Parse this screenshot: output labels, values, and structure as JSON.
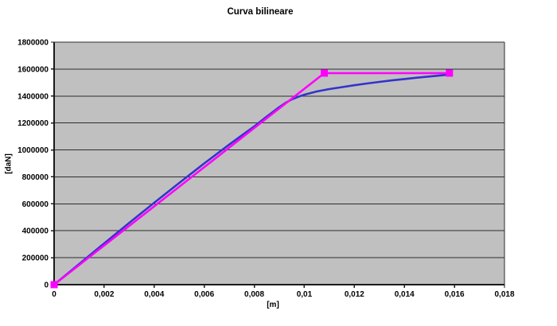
{
  "chart": {
    "title": "Curva bilineare",
    "x_axis_title": "[m]",
    "y_axis_title": "[daN]"
  },
  "chart_data": {
    "type": "line",
    "title": "Curva bilineare",
    "xlabel": "[m]",
    "ylabel": "[daN]",
    "xlim": [
      0,
      0.018
    ],
    "ylim": [
      0,
      1800000
    ],
    "grid": "horizontal",
    "legend": "none",
    "plot_bg": "#c0c0c0",
    "grid_color": "#2e2e2e",
    "axis_color": "#1a1a1a",
    "x_tick_values": [
      0,
      0.002,
      0.004,
      0.006,
      0.008,
      0.01,
      0.012,
      0.014,
      0.016,
      0.018
    ],
    "x_tick_labels": [
      "0",
      "0,002",
      "0,004",
      "0,006",
      "0,008",
      "0,01",
      "0,012",
      "0,014",
      "0,016",
      "0,018"
    ],
    "y_tick_values": [
      0,
      200000,
      400000,
      600000,
      800000,
      1000000,
      1200000,
      1400000,
      1600000,
      1800000
    ],
    "y_tick_labels": [
      "0",
      "200000",
      "400000",
      "600000",
      "800000",
      "1000000",
      "1200000",
      "1400000",
      "1600000",
      "1800000"
    ],
    "series": [
      {
        "id": "capacity-curve",
        "color": "#3333cc",
        "line_width": 2.6,
        "marker": "none",
        "points": [
          [
            0,
            0
          ],
          [
            0.001,
            153000
          ],
          [
            0.002,
            306000
          ],
          [
            0.003,
            458000
          ],
          [
            0.004,
            608000
          ],
          [
            0.005,
            755000
          ],
          [
            0.006,
            900000
          ],
          [
            0.007,
            1040000
          ],
          [
            0.0075,
            1108000
          ],
          [
            0.008,
            1175000
          ],
          [
            0.0085,
            1248000
          ],
          [
            0.009,
            1318000
          ],
          [
            0.00925,
            1350000
          ],
          [
            0.0095,
            1375000
          ],
          [
            0.00975,
            1394000
          ],
          [
            0.01,
            1410000
          ],
          [
            0.0105,
            1434000
          ],
          [
            0.011,
            1452000
          ],
          [
            0.0115,
            1466000
          ],
          [
            0.012,
            1480000
          ],
          [
            0.0125,
            1493000
          ],
          [
            0.013,
            1505000
          ],
          [
            0.0135,
            1516000
          ],
          [
            0.014,
            1526000
          ],
          [
            0.0145,
            1536000
          ],
          [
            0.015,
            1545000
          ],
          [
            0.0155,
            1554000
          ],
          [
            0.0158,
            1560000
          ]
        ]
      },
      {
        "id": "bilinear-curve",
        "color": "#ff00ff",
        "line_width": 2.6,
        "marker": "square",
        "marker_size": 8,
        "points": [
          [
            0,
            0
          ],
          [
            0.0108,
            1570000
          ],
          [
            0.0158,
            1570000
          ]
        ]
      }
    ]
  }
}
